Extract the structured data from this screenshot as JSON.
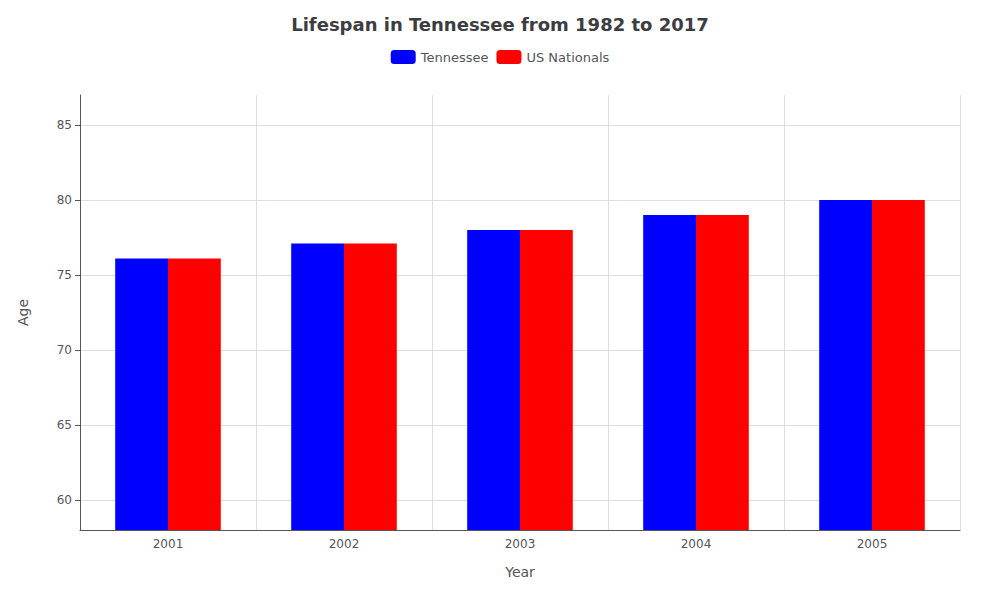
{
  "chart_data": {
    "type": "bar",
    "title": "Lifespan in Tennessee from 1982 to 2017",
    "xlabel": "Year",
    "ylabel": "Age",
    "categories": [
      "2001",
      "2002",
      "2003",
      "2004",
      "2005"
    ],
    "series": [
      {
        "name": "Tennessee",
        "color": "#0000ff",
        "values": [
          76.1,
          77.1,
          78.0,
          79.0,
          80.0
        ]
      },
      {
        "name": "US Nationals",
        "color": "#ff0000",
        "values": [
          76.1,
          77.1,
          78.0,
          79.0,
          80.0
        ]
      }
    ],
    "ylim": [
      58,
      87
    ],
    "yticks": [
      60,
      65,
      70,
      75,
      80,
      85
    ],
    "grid": true,
    "legend": "top"
  }
}
